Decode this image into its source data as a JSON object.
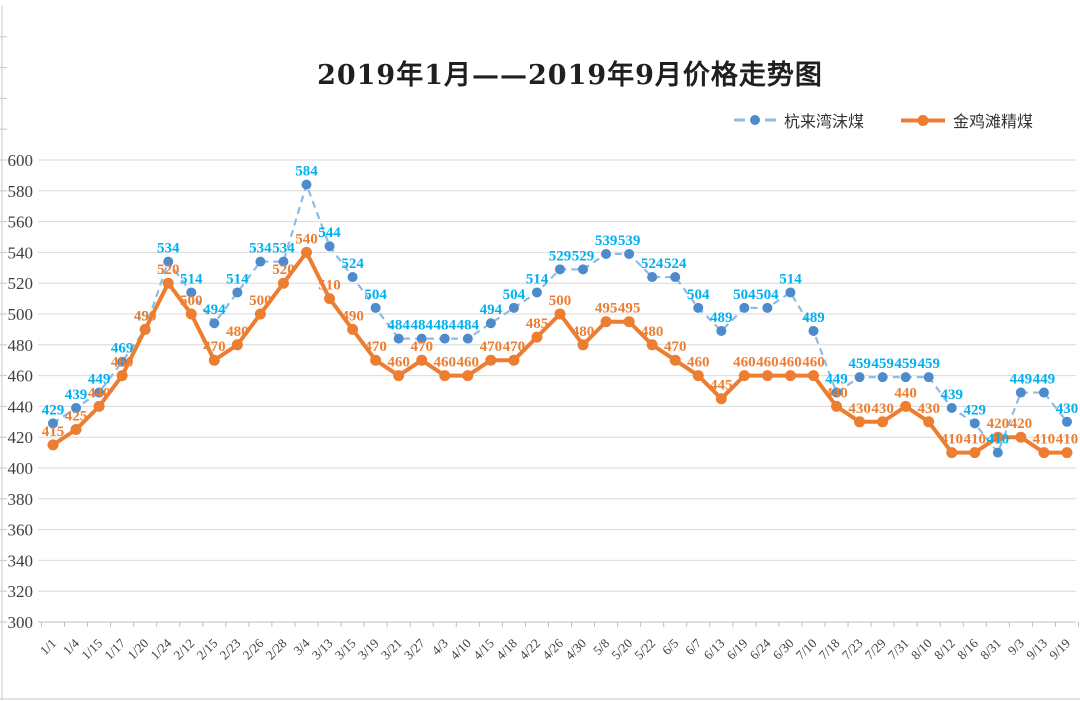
{
  "title": "2019年1月——2019年9月价格走势图",
  "colors": {
    "grid": "#D9D9D9",
    "axis": "#BFBFBF",
    "border": "#C8C8C8",
    "tick_label": "#404040",
    "blue_label": "#00B0F0",
    "orange_label": "#ED7D31"
  },
  "chart_data": {
    "type": "line",
    "title": "2019年1月——2019年9月价格走势图",
    "xlabel": "",
    "ylabel": "",
    "ylim": [
      300,
      600
    ],
    "y_tick_step": 20,
    "y_ticks": [
      300,
      320,
      340,
      360,
      380,
      400,
      420,
      440,
      460,
      480,
      500,
      520,
      540,
      560,
      580,
      600
    ],
    "grid": true,
    "legend_position": "top-right",
    "categories": [
      "1/1",
      "1/4",
      "1/15",
      "1/17",
      "1/20",
      "1/24",
      "2/12",
      "2/15",
      "2/23",
      "2/26",
      "2/28",
      "3/4",
      "3/13",
      "3/15",
      "3/19",
      "3/21",
      "3/27",
      "4/3",
      "4/10",
      "4/15",
      "4/18",
      "4/22",
      "4/26",
      "4/30",
      "5/8",
      "5/20",
      "5/22",
      "6/5",
      "6/7",
      "6/13",
      "6/19",
      "6/24",
      "6/30",
      "7/10",
      "7/18",
      "7/23",
      "7/29",
      "7/31",
      "8/10",
      "8/12",
      "8/16",
      "8/31",
      "9/3",
      "9/13",
      "9/19"
    ],
    "series": [
      {
        "name": "杭来湾沫煤",
        "style": "dashed",
        "line_color": "#8FBBE3",
        "marker_color": "#4E8BCB",
        "label_color": "#00B0F0",
        "values": [
          429,
          439,
          449,
          469,
          490,
          534,
          514,
          494,
          514,
          534,
          534,
          584,
          544,
          524,
          504,
          484,
          484,
          484,
          484,
          494,
          504,
          514,
          529,
          529,
          539,
          539,
          524,
          524,
          504,
          489,
          504,
          504,
          514,
          489,
          449,
          459,
          459,
          459,
          459,
          439,
          429,
          410,
          449,
          449,
          430
        ]
      },
      {
        "name": "金鸡滩精煤",
        "style": "solid",
        "line_color": "#ED7D31",
        "marker_color": "#ED7D31",
        "label_color": "#ED7D31",
        "values": [
          415,
          425,
          440,
          460,
          490,
          520,
          500,
          470,
          480,
          500,
          520,
          540,
          510,
          490,
          470,
          460,
          470,
          460,
          460,
          470,
          470,
          485,
          500,
          480,
          495,
          495,
          480,
          470,
          460,
          445,
          460,
          460,
          460,
          460,
          440,
          430,
          430,
          440,
          430,
          410,
          410,
          420,
          420,
          410,
          410
        ]
      }
    ]
  }
}
